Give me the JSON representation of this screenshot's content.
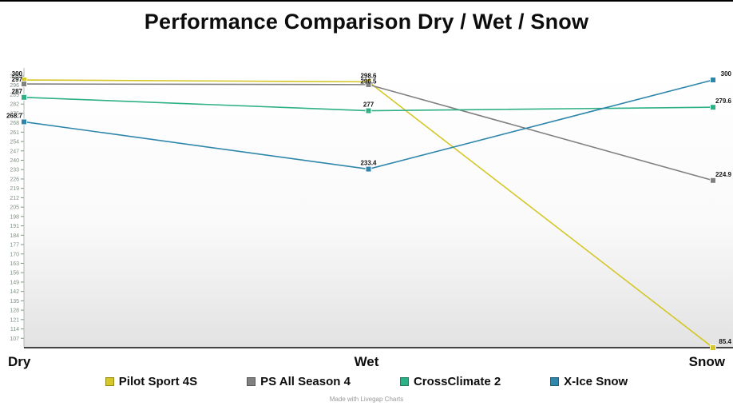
{
  "title": "Performance Comparison Dry / Wet / Snow",
  "chart_data": {
    "type": "line",
    "title": "Performance Comparison Dry / Wet / Snow",
    "categories": [
      "Dry",
      "Wet",
      "Snow"
    ],
    "series": [
      {
        "name": "Pilot Sport 4S",
        "color": "#d4c727",
        "values": [
          300,
          298.6,
          85.4
        ],
        "point_labels": [
          "300",
          "298.6",
          "85.4"
        ]
      },
      {
        "name": "PS All Season 4",
        "color": "#808080",
        "values": [
          297,
          296.5,
          224.9
        ],
        "point_labels": [
          "297",
          "296.5",
          "224.9"
        ]
      },
      {
        "name": "CrossClimate 2",
        "color": "#2eb086",
        "values": [
          287,
          277,
          279.6
        ],
        "point_labels": [
          "287",
          "277",
          "279.6"
        ]
      },
      {
        "name": "X-Ice Snow",
        "color": "#2e86ab",
        "values": [
          268.7,
          233.4,
          300
        ],
        "point_labels": [
          "268.7",
          "233.4",
          "300"
        ]
      }
    ],
    "ylim": [
      100,
      303
    ],
    "y_tick_step": 7,
    "y_ticks": [
      303,
      296,
      289,
      282,
      275,
      268,
      261,
      254,
      247,
      240,
      233,
      226,
      219,
      212,
      205,
      198,
      191,
      184,
      177,
      170,
      163,
      156,
      149,
      142,
      135,
      128,
      121,
      114,
      107
    ],
    "grid": false,
    "legend_position": "bottom"
  },
  "colors": {
    "tick": "#7d9180",
    "axis_x": "#444444",
    "axis_y": "#b5b5b5",
    "point_label": "#141414"
  },
  "footer": {
    "credit": "Made with Livegap Charts"
  }
}
